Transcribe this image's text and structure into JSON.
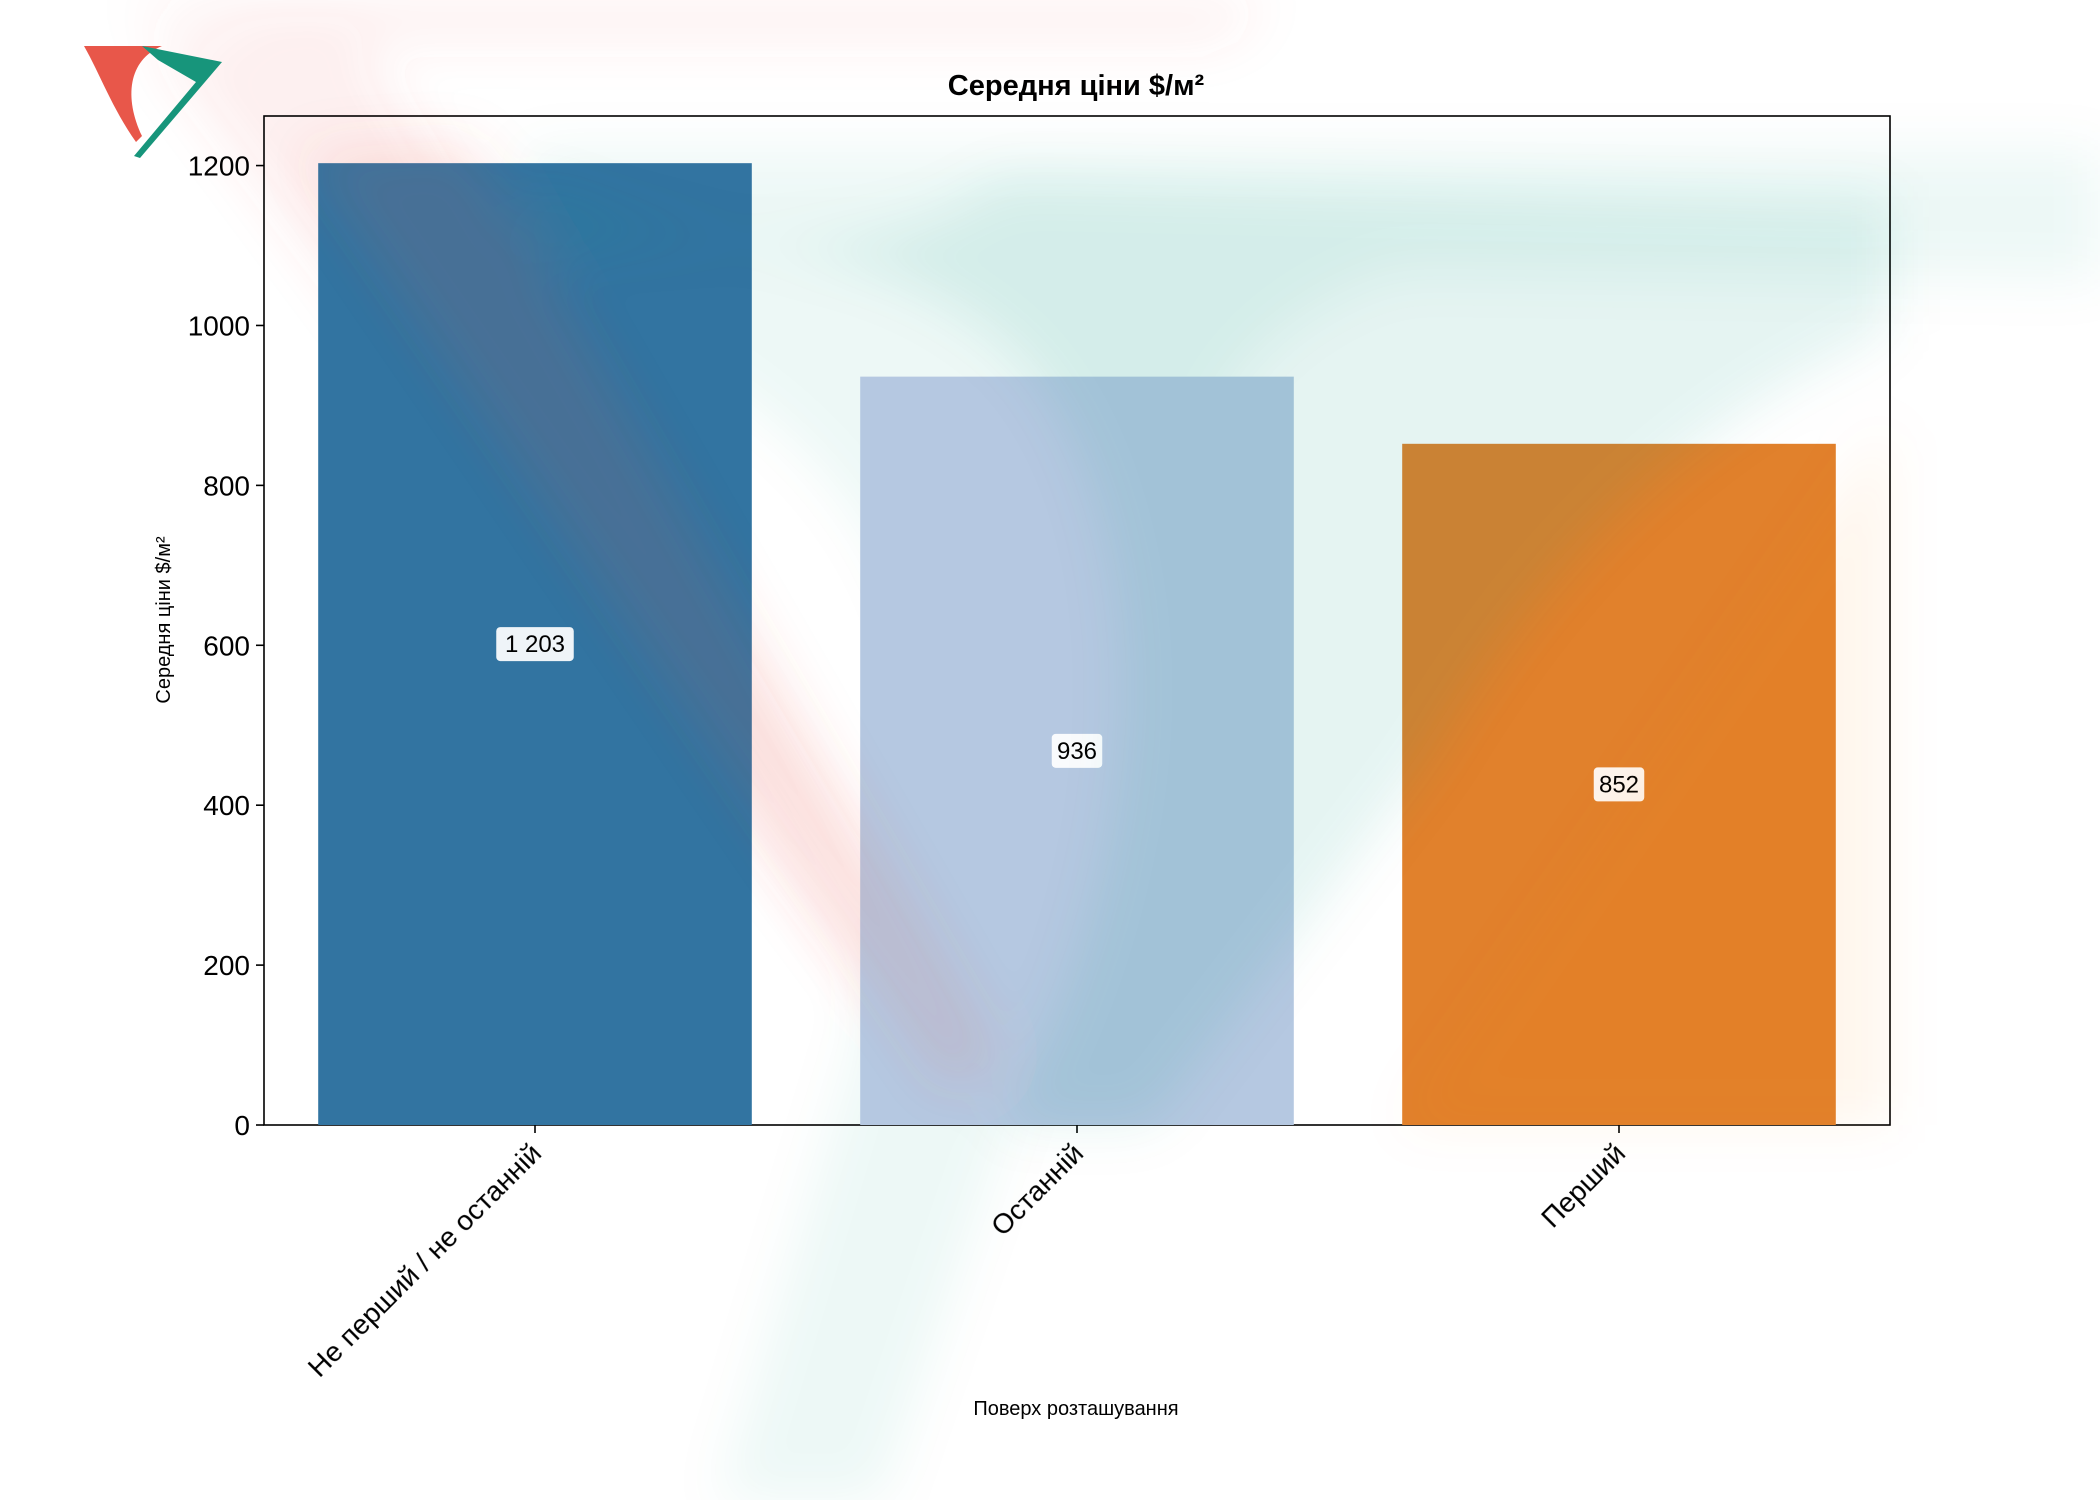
{
  "chart_data": {
    "type": "bar",
    "title": "Середня ціни $/м²",
    "xlabel": "Поверх розташування",
    "ylabel": "Середня ціни $/м²",
    "categories": [
      "Не перший / не останній",
      "Останній",
      "Перший"
    ],
    "values": [
      1203,
      936,
      852
    ],
    "data_labels": [
      "1 203",
      "936",
      "852"
    ],
    "colors": [
      "#3274a1",
      "#b5c8e1",
      "#e1812c"
    ],
    "ylim": [
      0,
      1262
    ],
    "yticks": [
      0,
      200,
      400,
      600,
      800,
      1000,
      1200
    ],
    "grid": false,
    "legend": "none"
  },
  "watermark": {
    "colors": [
      "#e8574a",
      "#17957b"
    ],
    "description_icon": "logo-watermark-icon"
  }
}
